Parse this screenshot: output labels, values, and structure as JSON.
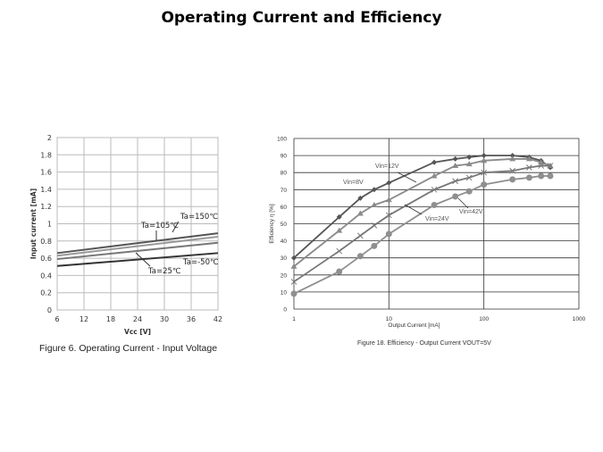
{
  "slide_title": "Operating Current and Efficiency",
  "chart_data": [
    {
      "type": "line",
      "caption": "Figure 6. Operating Current - Input Voltage",
      "xlabel": "Vcc [V]",
      "ylabel": "Input current [mA]",
      "xlim": [
        6,
        42
      ],
      "ylim": [
        0,
        2
      ],
      "xticks": [
        "6",
        "12",
        "18",
        "24",
        "30",
        "36",
        "42"
      ],
      "yticks": [
        "0",
        "0.2",
        "0.4",
        "0.6",
        "0.8",
        "1",
        "1.2",
        "1.4",
        "1.6",
        "1.8",
        "2"
      ],
      "grid": true,
      "series": [
        {
          "name": "Ta=150℃",
          "x": [
            6,
            42
          ],
          "y": [
            0.66,
            0.89
          ],
          "color": "#555555"
        },
        {
          "name": "Ta=105℃",
          "x": [
            6,
            42
          ],
          "y": [
            0.63,
            0.85
          ],
          "color": "#999999"
        },
        {
          "name": "Ta=25℃",
          "x": [
            6,
            42
          ],
          "y": [
            0.59,
            0.78
          ],
          "color": "#777777"
        },
        {
          "name": "Ta=-50℃",
          "x": [
            6,
            42
          ],
          "y": [
            0.51,
            0.66
          ],
          "color": "#333333"
        }
      ]
    },
    {
      "type": "line",
      "caption": "Figure 18. Efficiency - Output Current    VOUT=5V",
      "xlabel": "Output Current [mA]",
      "ylabel": "Efficiency η [%]",
      "xscale": "log",
      "xlim": [
        1,
        1000
      ],
      "ylim": [
        0,
        100
      ],
      "xticks": [
        "1",
        "10",
        "100",
        "1000"
      ],
      "yticks": [
        "0",
        "10",
        "20",
        "30",
        "40",
        "50",
        "60",
        "70",
        "80",
        "90",
        "100"
      ],
      "grid": true,
      "x": [
        1,
        3,
        5,
        7,
        10,
        30,
        50,
        70,
        100,
        200,
        300,
        400,
        500
      ],
      "series": [
        {
          "name": "Vin=8V",
          "marker": "diamond",
          "color": "#555555",
          "y": [
            30,
            54,
            65,
            70,
            74,
            86,
            88,
            89,
            90,
            90,
            89,
            87,
            83
          ]
        },
        {
          "name": "Vin=12V",
          "marker": "triangle",
          "color": "#8a8a8a",
          "y": [
            25,
            46,
            56,
            61,
            64,
            78,
            84,
            85,
            87,
            88,
            88,
            86,
            84
          ]
        },
        {
          "name": "Vin=24V",
          "marker": "x",
          "color": "#777777",
          "y": [
            16,
            34,
            43,
            49,
            55,
            70,
            75,
            77,
            80,
            81,
            83,
            84,
            84
          ]
        },
        {
          "name": "Vin=42V",
          "marker": "circle",
          "color": "#8f8f8f",
          "y": [
            9,
            22,
            31,
            37,
            44,
            61,
            66,
            69,
            73,
            76,
            77,
            78,
            78
          ]
        }
      ]
    }
  ]
}
